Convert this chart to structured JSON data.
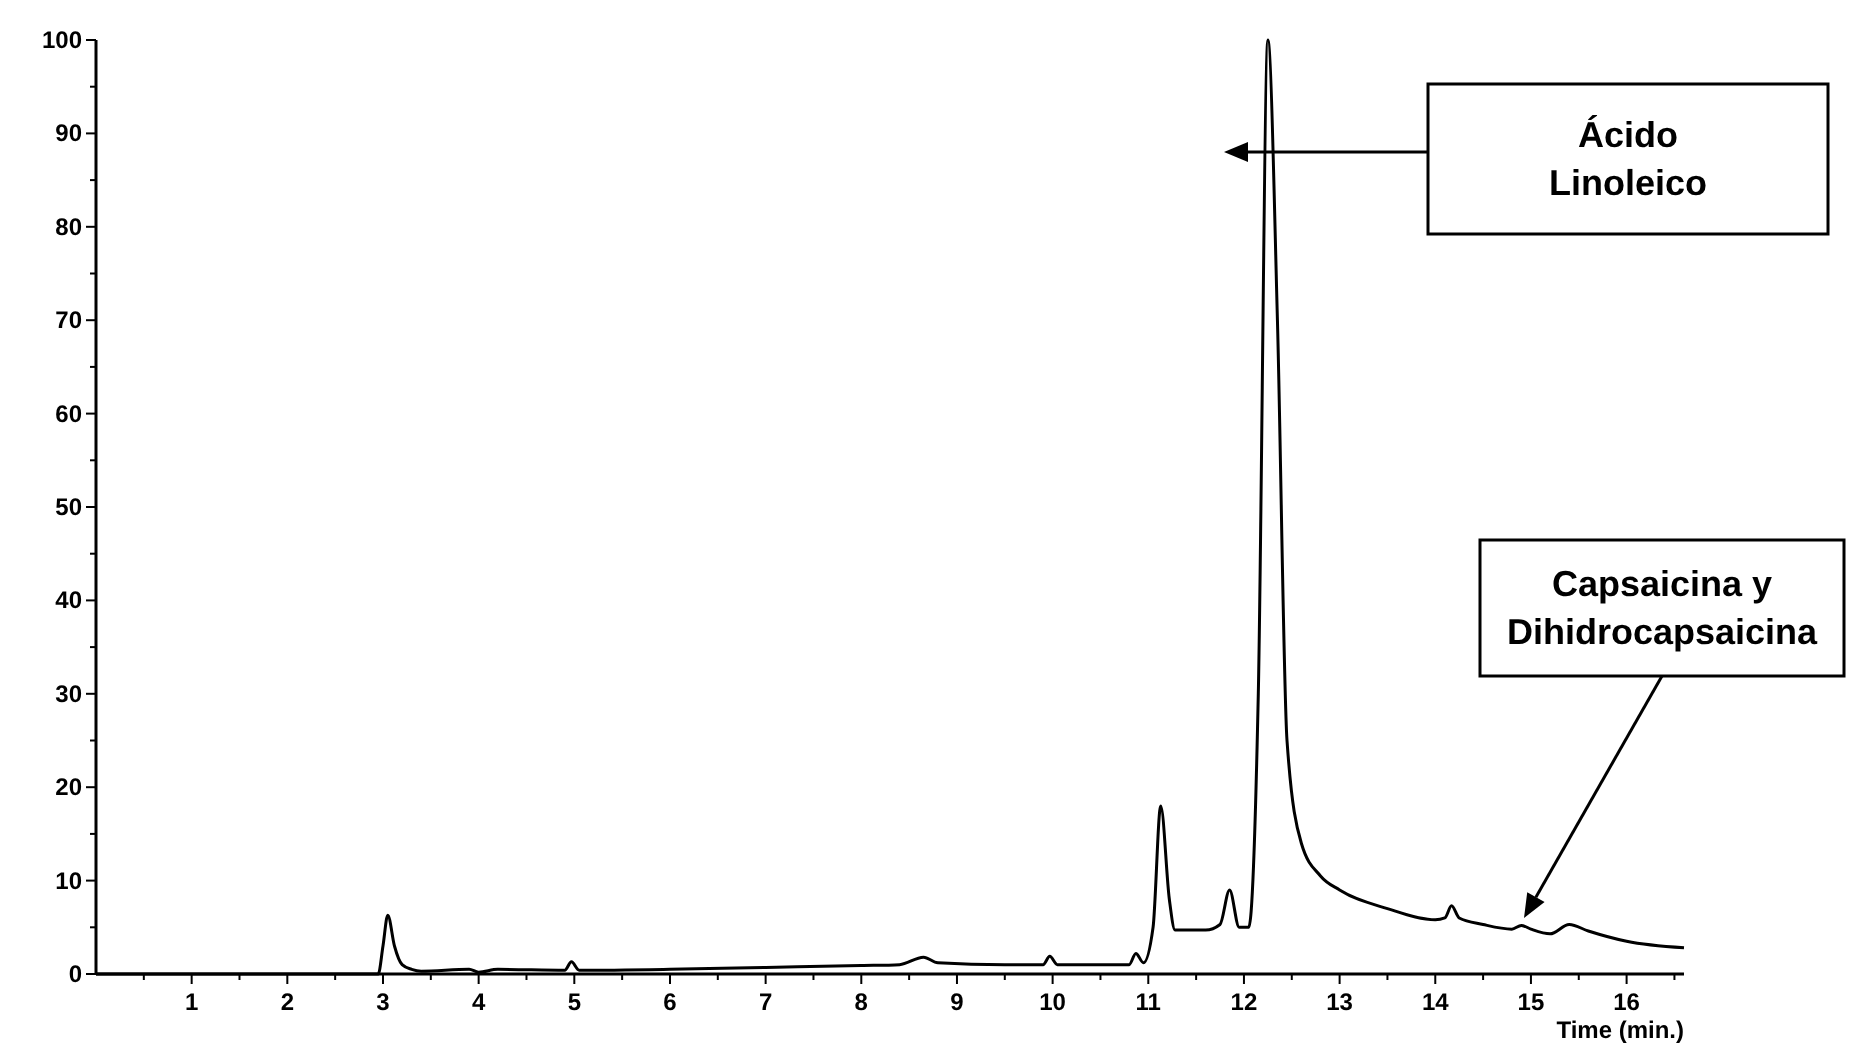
{
  "chart_data": {
    "type": "line",
    "xlabel": "Time (min.)",
    "x": [
      0,
      2.95,
      3.0,
      3.05,
      3.12,
      3.2,
      3.3,
      3.4,
      3.9,
      4.0,
      4.2,
      4.9,
      4.97,
      5.05,
      6,
      7,
      8,
      8.4,
      8.65,
      8.8,
      9.5,
      9.9,
      9.97,
      10.05,
      10.8,
      10.87,
      10.95,
      11.05,
      11.13,
      11.22,
      11.28,
      11.6,
      11.75,
      11.85,
      11.95,
      12.05,
      12.15,
      12.25,
      12.35,
      12.45,
      12.6,
      12.8,
      13,
      13.5,
      14,
      14.1,
      14.17,
      14.25,
      14.5,
      14.8,
      14.9,
      15,
      15.2,
      15.4,
      15.6,
      16,
      16.6
    ],
    "series": [
      {
        "color": "#000000",
        "values": [
          0,
          0,
          3,
          6.3,
          3,
          1,
          0.5,
          0.3,
          0.5,
          0.2,
          0.5,
          0.4,
          1.3,
          0.4,
          0.5,
          0.7,
          0.9,
          1,
          1.8,
          1.2,
          1,
          1,
          1.9,
          1,
          1,
          2.2,
          1.2,
          5,
          18,
          8,
          4.7,
          4.7,
          5.3,
          9,
          5,
          5,
          30,
          100,
          70,
          25,
          14,
          10.5,
          9,
          7,
          5.8,
          6,
          7.3,
          6,
          5.3,
          4.8,
          5.2,
          4.8,
          4.3,
          5.3,
          4.6,
          3.5,
          2.8
        ]
      }
    ],
    "xlim": [
      0,
      16.6
    ],
    "ylim": [
      0,
      100
    ],
    "xticks": [
      {
        "value": 0.5,
        "label": null
      },
      1,
      {
        "value": 1.5,
        "label": null
      },
      2,
      {
        "value": 2.5,
        "label": null
      },
      3,
      {
        "value": 3.5,
        "label": null
      },
      4,
      {
        "value": 4.5,
        "label": null
      },
      5,
      {
        "value": 5.5,
        "label": null
      },
      6,
      {
        "value": 6.5,
        "label": null
      },
      7,
      {
        "value": 7.5,
        "label": null
      },
      8,
      {
        "value": 8.5,
        "label": null
      },
      9,
      {
        "value": 9.5,
        "label": null
      },
      10,
      {
        "value": 10.5,
        "label": null
      },
      11,
      {
        "value": 11.5,
        "label": null
      },
      12,
      {
        "value": 12.5,
        "label": null
      },
      13,
      {
        "value": 13.5,
        "label": null
      },
      14,
      {
        "value": 14.5,
        "label": null
      },
      15,
      {
        "value": 15.5,
        "label": null
      },
      16,
      {
        "value": 16.5,
        "label": null
      }
    ],
    "yticks": [
      0,
      {
        "value": 5,
        "label": null
      },
      10,
      {
        "value": 15,
        "label": null
      },
      20,
      {
        "value": 25,
        "label": null
      },
      30,
      {
        "value": 35,
        "label": null
      },
      40,
      {
        "value": 45,
        "label": null
      },
      50,
      {
        "value": 55,
        "label": null
      },
      60,
      {
        "value": 65,
        "label": null
      },
      70,
      {
        "value": 75,
        "label": null
      },
      80,
      {
        "value": 85,
        "label": null
      },
      90,
      {
        "value": 95,
        "label": null
      },
      100
    ],
    "annotations": [
      "Ácido\nLinoleico",
      "Capsaicina y\nDihidrocapsaicina"
    ],
    "grid": false,
    "marker": "none",
    "line_style": "solid"
  }
}
